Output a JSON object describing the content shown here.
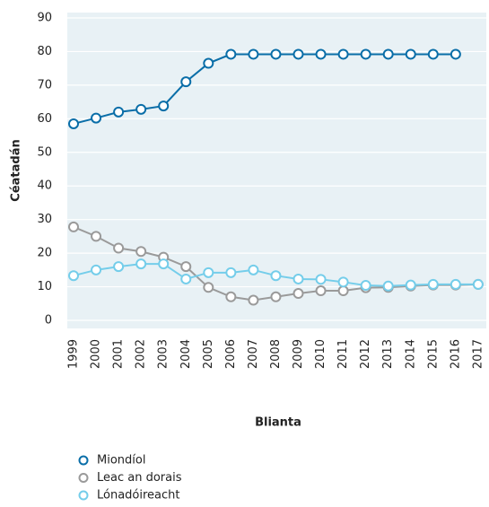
{
  "chart_data": {
    "type": "line",
    "x_label": "Blianta",
    "y_label": "Céatadán",
    "categories": [
      "1999",
      "2000",
      "2001",
      "2002",
      "2003",
      "2004",
      "2005",
      "2006",
      "2007",
      "2008",
      "2009",
      "2010",
      "2011",
      "2012",
      "2013",
      "2014",
      "2015",
      "2016",
      "2017"
    ],
    "series": [
      {
        "name": "Miondíol",
        "color": "#0a6ea8",
        "values": [
          58.5,
          60.2,
          62,
          62.8,
          63.8,
          71,
          76.5,
          79.2,
          79.2,
          79.2,
          79.2,
          79.2,
          79.2,
          79.2,
          79.2,
          79.2,
          79.2,
          79.2,
          null
        ]
      },
      {
        "name": "Leac an dorais",
        "color": "#9a9a9a",
        "values": [
          27.8,
          25,
          21.5,
          20.5,
          18.8,
          16,
          9.8,
          7,
          6,
          7,
          8,
          8.8,
          8.8,
          9.7,
          9.8,
          10.2,
          10.5,
          10.5,
          10.7
        ]
      },
      {
        "name": "Lónadóireacht",
        "color": "#74cdea",
        "values": [
          13.3,
          15,
          16,
          16.8,
          16.8,
          12.3,
          14.2,
          14.2,
          15,
          13.3,
          12.3,
          12.2,
          11.4,
          10.4,
          10.2,
          10.5,
          10.7,
          10.7,
          10.7
        ]
      }
    ],
    "ylim": [
      0,
      90
    ],
    "yticks": [
      0,
      10,
      20,
      30,
      40,
      50,
      60,
      70,
      80,
      90
    ],
    "grid": true
  }
}
